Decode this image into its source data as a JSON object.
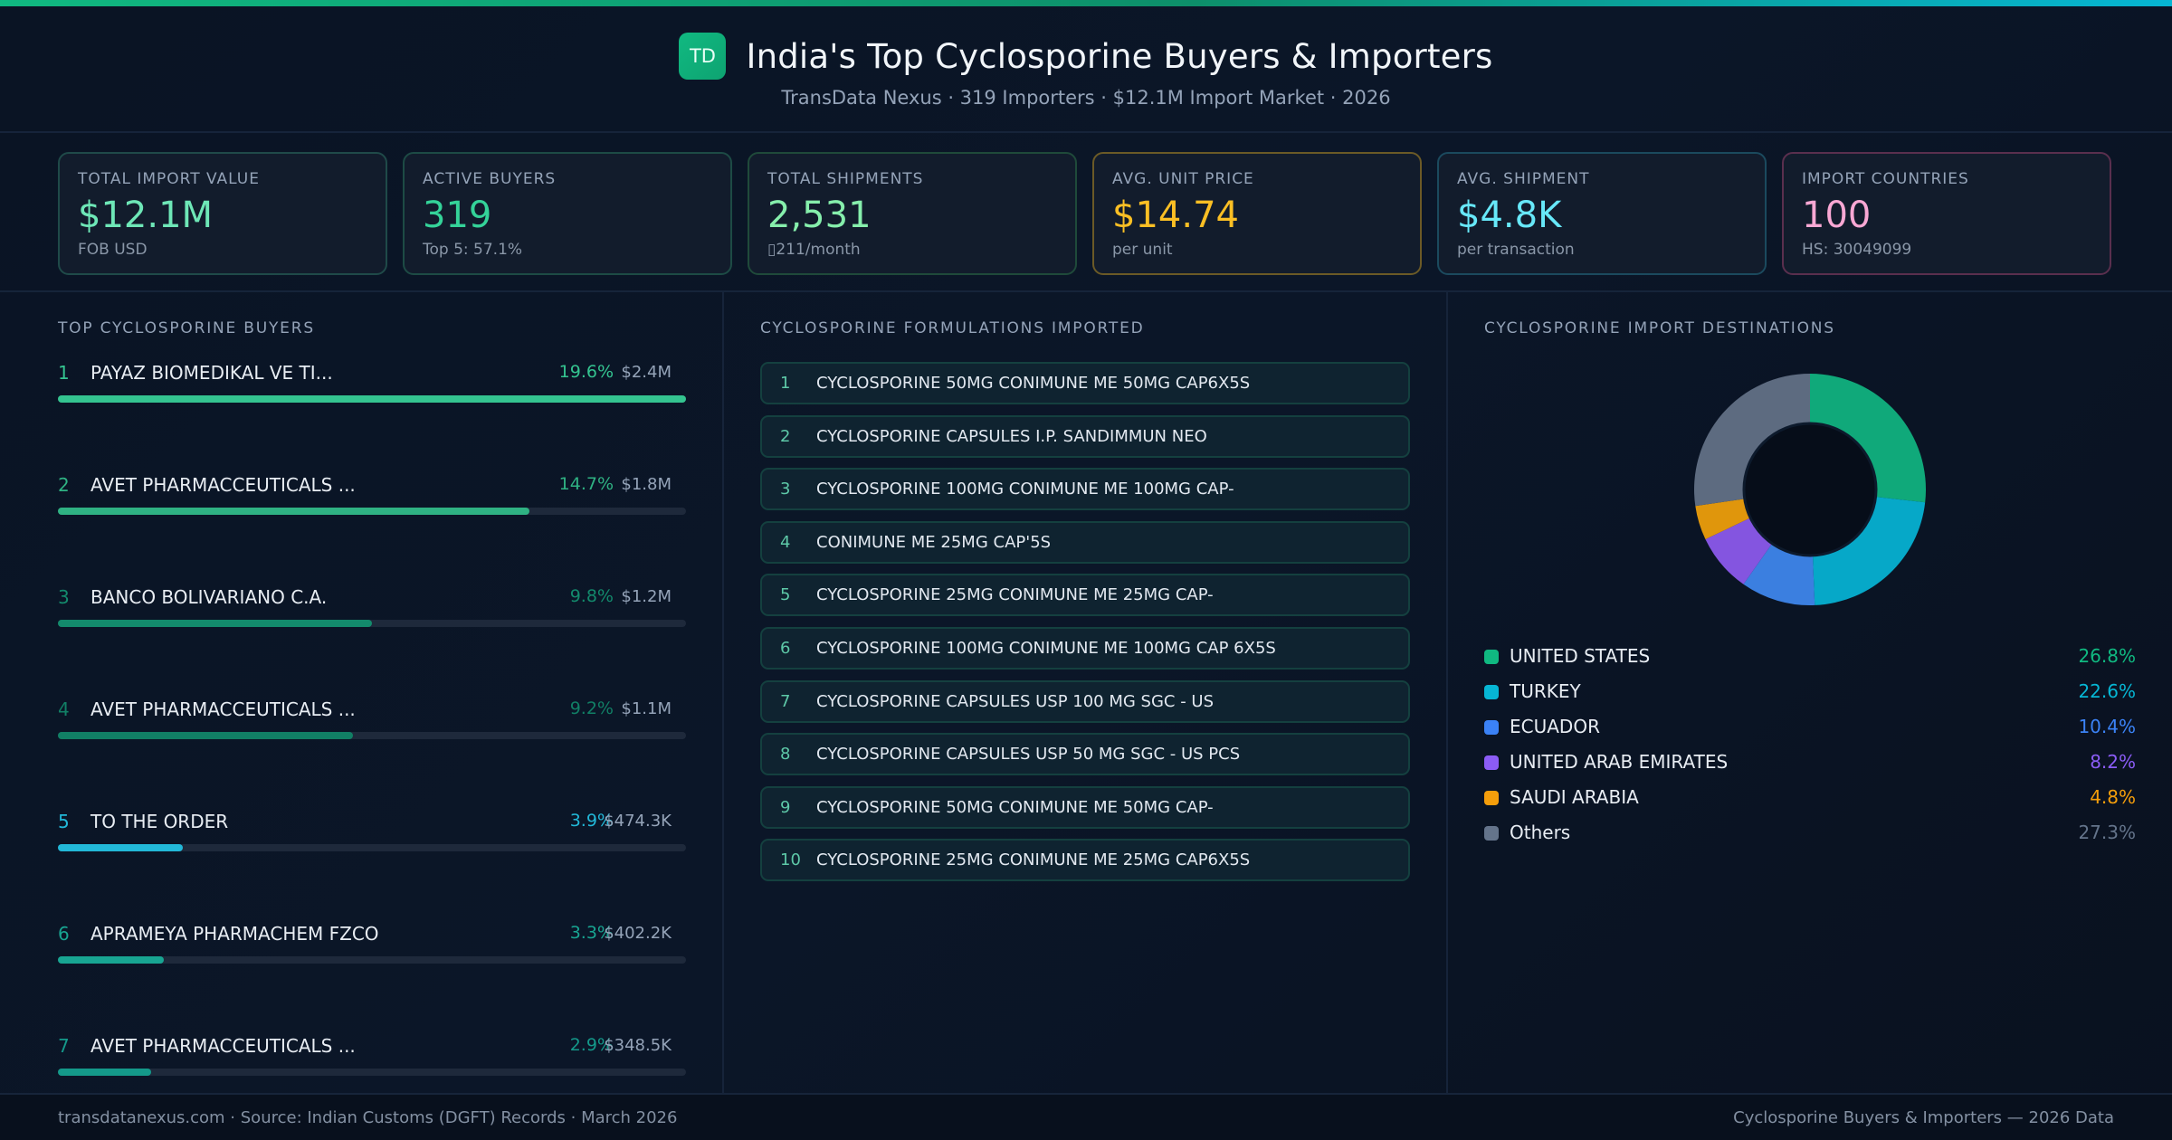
{
  "header": {
    "logo": "TD",
    "title": "India's Top Cyclosporine Buyers & Importers",
    "subtitle": "TransData Nexus · 319 Importers · $12.1M Import Market · 2026"
  },
  "kpis": [
    {
      "label": "Total Import Value",
      "value": "$12.1M",
      "sub": "FOB USD",
      "color": "#6ee7b7",
      "border": "#1f4a49"
    },
    {
      "label": "Active Buyers",
      "value": "319",
      "sub": "Top 5: 57.1%",
      "color": "#34d399",
      "border": "#1d4b45"
    },
    {
      "label": "Total Shipments",
      "value": "2,531",
      "sub": "▯211/month",
      "color": "#86efac",
      "border": "#1f4a3a"
    },
    {
      "label": "Avg. Unit Price",
      "value": "$14.74",
      "sub": "per unit",
      "color": "#fbbf24",
      "border": "#6b5a26"
    },
    {
      "label": "Avg. Shipment",
      "value": "$4.8K",
      "sub": "per transaction",
      "color": "#67e8f9",
      "border": "#1b4a5e"
    },
    {
      "label": "Import Countries",
      "value": "100",
      "sub": "HS: 30049099",
      "color": "#f9a8d4",
      "border": "#5a2f4e"
    }
  ],
  "buyers": {
    "heading": "TOP CYCLOSPORINE BUYERS",
    "items": [
      {
        "rank": "1",
        "name": "PAYAZ  BIOMEDIKAL VE TI...",
        "pct": "19.6%",
        "amount": "$2.4M",
        "share": 19.6,
        "color": "#34c490"
      },
      {
        "rank": "2",
        "name": "AVET PHARMACCEUTICALS ...",
        "pct": "14.7%",
        "amount": "$1.8M",
        "share": 14.7,
        "color": "#2fb283"
      },
      {
        "rank": "3",
        "name": "BANCO BOLIVARIANO C.A.",
        "pct": "9.8%",
        "amount": "$1.2M",
        "share": 9.8,
        "color": "#138a6c"
      },
      {
        "rank": "4",
        "name": "AVET PHARMACCEUTICALS ...",
        "pct": "9.2%",
        "amount": "$1.1M",
        "share": 9.2,
        "color": "#117f65"
      },
      {
        "rank": "5",
        "name": "TO THE ORDER",
        "pct": "3.9%",
        "amount": "$474.3K",
        "share": 3.9,
        "color": "#22b8d8"
      },
      {
        "rank": "6",
        "name": "APRAMEYA PHARMACHEM FZCO",
        "pct": "3.3%",
        "amount": "$402.2K",
        "share": 3.3,
        "color": "#18a592"
      },
      {
        "rank": "7",
        "name": "AVET PHARMACCEUTICALS ...",
        "pct": "2.9%",
        "amount": "$348.5K",
        "share": 2.9,
        "color": "#14998a"
      }
    ]
  },
  "formulations": {
    "heading": "CYCLOSPORINE FORMULATIONS IMPORTED",
    "items": [
      {
        "n": "1",
        "text": "CYCLOSPORINE 50MG CONIMUNE ME 50MG CAP6X5S"
      },
      {
        "n": "2",
        "text": "CYCLOSPORINE CAPSULES I.P.  SANDIMMUN NEO"
      },
      {
        "n": "3",
        "text": "CYCLOSPORINE 100MG CONIMUNE ME 100MG CAP-"
      },
      {
        "n": "4",
        "text": "CONIMUNE ME 25MG CAP'5S"
      },
      {
        "n": "5",
        "text": "CYCLOSPORINE 25MG CONIMUNE ME 25MG CAP-"
      },
      {
        "n": "6",
        "text": "CYCLOSPORINE 100MG CONIMUNE ME 100MG CAP 6X5S"
      },
      {
        "n": "7",
        "text": "CYCLOSPORINE CAPSULES USP 100 MG SGC - US"
      },
      {
        "n": "8",
        "text": "CYCLOSPORINE CAPSULES USP 50 MG SGC - US PCS"
      },
      {
        "n": "9",
        "text": "CYCLOSPORINE 50MG CONIMUNE ME 50MG CAP-"
      },
      {
        "n": "10",
        "text": "CYCLOSPORINE 25MG CONIMUNE ME 25MG CAP6X5S"
      }
    ]
  },
  "destinations": {
    "heading": "CYCLOSPORINE IMPORT DESTINATIONS"
  },
  "chart_data": {
    "type": "pie",
    "donut": true,
    "categories": [
      "UNITED STATES",
      "TURKEY",
      "ECUADOR",
      "UNITED ARAB EMIRATES",
      "SAUDI ARABIA",
      "Others"
    ],
    "values": [
      26.8,
      22.6,
      10.4,
      8.2,
      4.8,
      27.3
    ],
    "labels": [
      "26.8%",
      "22.6%",
      "10.4%",
      "8.2%",
      "4.8%",
      "27.3%"
    ],
    "colors": [
      "#10a97a",
      "#06a8c8",
      "#3b7fe0",
      "#8455e0",
      "#e0960c",
      "#5d6b80"
    ],
    "label_colors": [
      "#10b981",
      "#06b6d4",
      "#3b82f6",
      "#8b5cf6",
      "#f59e0b",
      "#64748b"
    ],
    "legend": "below"
  },
  "footer": {
    "left": "transdatanexus.com · Source: Indian Customs (DGFT) Records · March 2026",
    "right": "Cyclosporine Buyers & Importers — 2026 Data"
  }
}
